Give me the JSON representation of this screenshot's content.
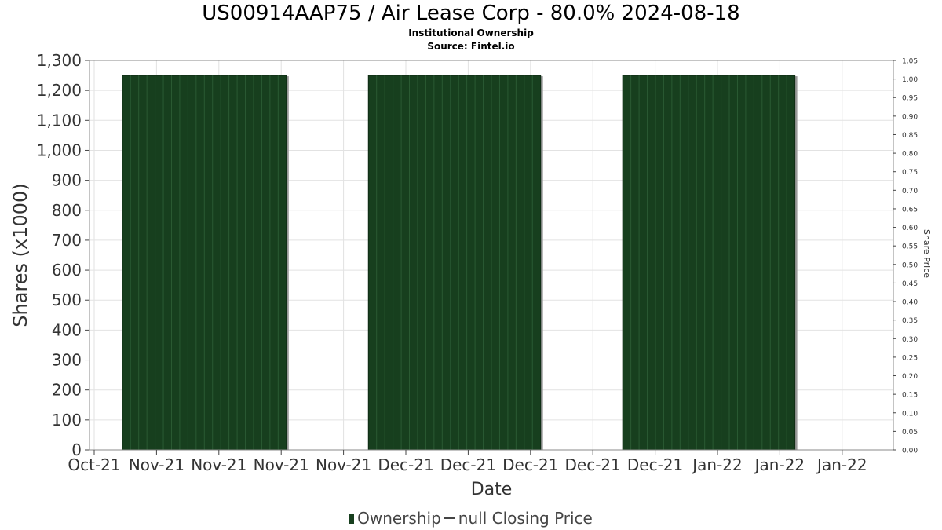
{
  "title": "US00914AAP75 / Air Lease Corp - 80.0% 2024-08-18",
  "subtitle1": "Institutional Ownership",
  "subtitle2": "Source: Fintel.io",
  "legend": {
    "ownership": "Ownership",
    "price": "null Closing Price"
  },
  "colors": {
    "bar": "#173f1e",
    "bar_stripe": "#2a5a33",
    "bar_shadow": "#9a9a9a",
    "grid": "#e2e2e2",
    "axis": "#888888"
  },
  "chart_data": {
    "type": "bar",
    "title": "US00914AAP75 / Air Lease Corp - 80.0% 2024-08-18",
    "xlabel": "Date",
    "ylabel": "Shares (x1000)",
    "y2label": "Share Price",
    "ylim": [
      0,
      1300
    ],
    "y2lim": [
      0,
      1.05
    ],
    "yticks": [
      "0",
      "100",
      "200",
      "300",
      "400",
      "500",
      "600",
      "700",
      "800",
      "900",
      "1,000",
      "1,100",
      "1,200",
      "1,300"
    ],
    "y2ticks": [
      "0.00",
      "0.05",
      "0.10",
      "0.15",
      "0.20",
      "0.25",
      "0.30",
      "0.35",
      "0.40",
      "0.45",
      "0.50",
      "0.55",
      "0.60",
      "0.65",
      "0.70",
      "0.75",
      "0.80",
      "0.85",
      "0.90",
      "0.95",
      "1.00",
      "1.05"
    ],
    "xticks": [
      "Oct-21",
      "Nov-21",
      "Nov-21",
      "Nov-21",
      "Nov-21",
      "Dec-21",
      "Dec-21",
      "Dec-21",
      "Dec-21",
      "Dec-21",
      "Jan-22",
      "Jan-22",
      "Jan-22"
    ],
    "xlim": [
      "2021-10-29",
      "2022-02-04"
    ],
    "grid": true,
    "legend_position": "bottom",
    "series": [
      {
        "name": "Ownership",
        "blocks": [
          {
            "start": "2021-11-02",
            "end": "2021-11-22",
            "value": 1250
          },
          {
            "start": "2021-12-02",
            "end": "2021-12-23",
            "value": 1250
          },
          {
            "start": "2022-01-02",
            "end": "2022-01-23",
            "value": 1250
          }
        ]
      },
      {
        "name": "null Closing Price",
        "values": []
      }
    ]
  }
}
